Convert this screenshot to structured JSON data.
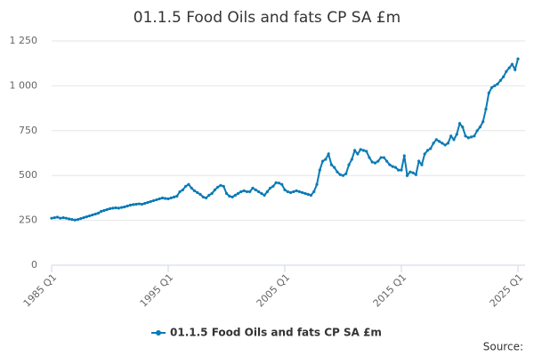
{
  "chart_data": {
    "type": "line",
    "title": "01.1.5 Food Oils and fats CP SA £m",
    "categories": [
      "1985 Q1",
      null,
      null,
      null,
      null,
      null,
      null,
      null,
      null,
      null,
      null,
      null,
      null,
      null,
      null,
      null,
      null,
      null,
      null,
      null,
      null,
      null,
      null,
      null,
      null,
      null,
      null,
      null,
      null,
      null,
      null,
      null,
      null,
      null,
      null,
      null,
      null,
      null,
      null,
      null,
      "1995 Q1",
      null,
      null,
      null,
      null,
      null,
      null,
      null,
      null,
      null,
      null,
      null,
      null,
      null,
      null,
      null,
      null,
      null,
      null,
      null,
      null,
      null,
      null,
      null,
      null,
      null,
      null,
      null,
      null,
      null,
      null,
      null,
      null,
      null,
      null,
      null,
      null,
      null,
      null,
      null,
      "2005 Q1",
      null,
      null,
      null,
      null,
      null,
      null,
      null,
      null,
      null,
      null,
      null,
      null,
      null,
      null,
      null,
      null,
      null,
      null,
      null,
      null,
      null,
      null,
      null,
      null,
      null,
      null,
      null,
      null,
      null,
      null,
      null,
      null,
      null,
      null,
      null,
      null,
      null,
      null,
      null,
      "2015 Q1",
      null,
      null,
      null,
      null,
      null,
      null,
      null,
      null,
      null,
      null,
      null,
      null,
      null,
      null,
      null,
      null,
      null,
      null,
      null,
      null,
      null,
      null,
      null,
      null,
      null,
      null,
      null,
      null,
      null,
      null,
      null,
      null,
      null,
      null,
      null,
      null,
      null,
      null,
      null,
      "2025 Q1"
    ],
    "series": [
      {
        "name": "01.1.5 Food Oils and fats CP SA £m",
        "color": "#0b7ab5",
        "values": [
          262,
          265,
          268,
          262,
          265,
          262,
          258,
          255,
          252,
          255,
          260,
          265,
          270,
          275,
          280,
          285,
          290,
          300,
          305,
          310,
          315,
          318,
          320,
          318,
          322,
          325,
          330,
          335,
          338,
          340,
          342,
          340,
          345,
          350,
          355,
          360,
          365,
          370,
          375,
          372,
          370,
          375,
          380,
          385,
          410,
          420,
          440,
          450,
          430,
          415,
          405,
          395,
          380,
          375,
          390,
          400,
          420,
          435,
          445,
          440,
          400,
          385,
          380,
          390,
          400,
          410,
          415,
          410,
          410,
          430,
          420,
          410,
          400,
          390,
          410,
          430,
          440,
          460,
          458,
          450,
          420,
          410,
          405,
          410,
          415,
          410,
          405,
          400,
          395,
          390,
          410,
          450,
          530,
          580,
          590,
          620,
          560,
          545,
          520,
          505,
          500,
          510,
          560,
          590,
          640,
          620,
          645,
          640,
          635,
          600,
          575,
          570,
          580,
          600,
          600,
          580,
          560,
          550,
          545,
          530,
          530,
          610,
          500,
          520,
          515,
          505,
          580,
          560,
          620,
          640,
          650,
          680,
          700,
          690,
          680,
          670,
          680,
          720,
          700,
          730,
          790,
          770,
          720,
          710,
          715,
          720,
          750,
          770,
          800,
          870,
          960,
          990,
          1000,
          1010,
          1030,
          1050,
          1080,
          1100,
          1120,
          1090,
          1150
        ]
      }
    ],
    "ylim": [
      0,
      1250
    ],
    "yticks": [
      0,
      250,
      500,
      750,
      {
        "value": 1000,
        "label": "1 000"
      },
      {
        "value": 1250,
        "label": "1 250"
      }
    ],
    "grid": true,
    "source": "Source:"
  }
}
